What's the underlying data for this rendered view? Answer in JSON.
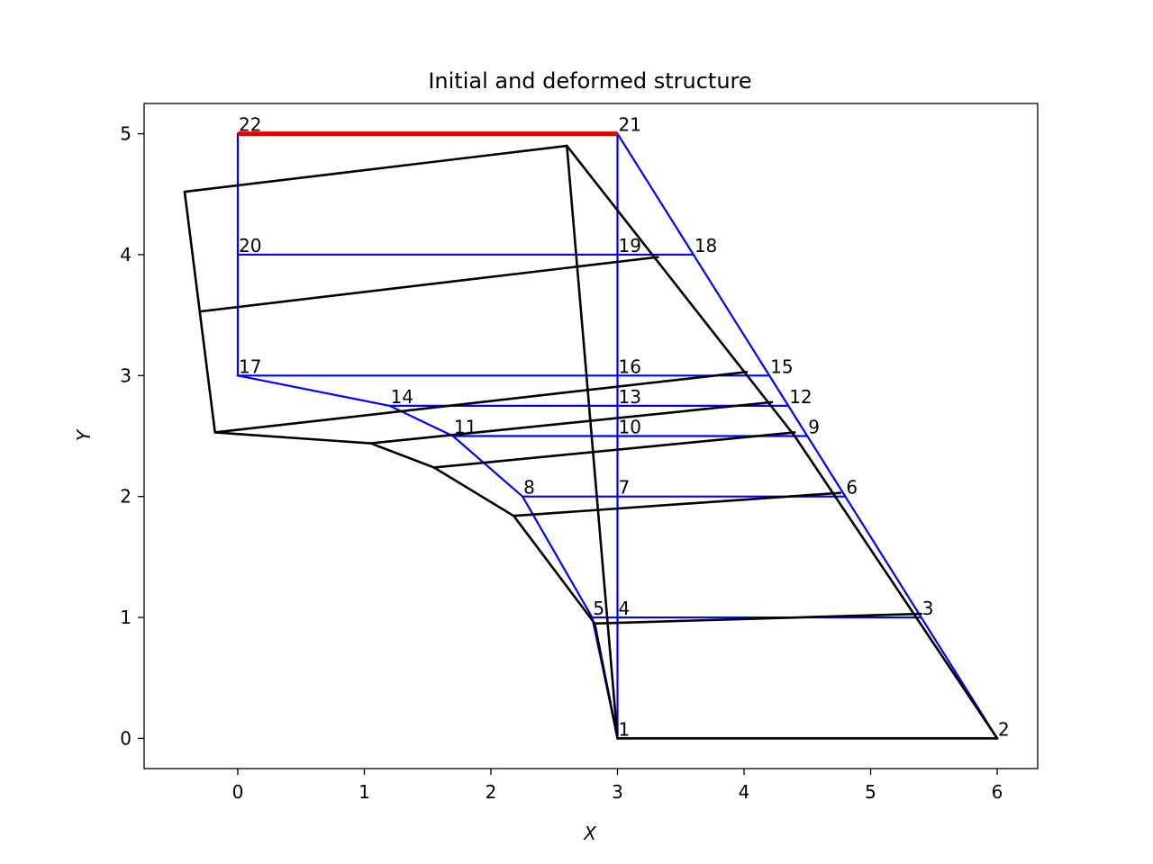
{
  "chart_data": {
    "type": "line",
    "title": "Initial and deformed structure",
    "xlabel": "X",
    "ylabel": "Y",
    "xlim": [
      -0.74,
      6.32
    ],
    "ylim": [
      -0.25,
      5.25
    ],
    "xticks": [
      0,
      1,
      2,
      3,
      4,
      5,
      6
    ],
    "yticks": [
      0,
      1,
      2,
      3,
      4,
      5
    ],
    "grid": false,
    "colors": {
      "initial": "#0000ff",
      "deformed": "#000000",
      "highlight": "#e00000"
    },
    "nodes": [
      {
        "id": "1",
        "label": "1",
        "x": 3.0,
        "y": 0.0
      },
      {
        "id": "2",
        "label": "2",
        "x": 6.0,
        "y": 0.0
      },
      {
        "id": "3",
        "label": "3",
        "x": 5.4,
        "y": 1.0
      },
      {
        "id": "4",
        "label": "4",
        "x": 3.0,
        "y": 1.0
      },
      {
        "id": "5",
        "label": "5",
        "x": 2.8,
        "y": 1.0
      },
      {
        "id": "6",
        "label": "6",
        "x": 4.8,
        "y": 2.0
      },
      {
        "id": "7",
        "label": "7",
        "x": 3.0,
        "y": 2.0
      },
      {
        "id": "8",
        "label": "8",
        "x": 2.25,
        "y": 2.0
      },
      {
        "id": "9",
        "label": "9",
        "x": 4.5,
        "y": 2.5
      },
      {
        "id": "10",
        "label": "10",
        "x": 3.0,
        "y": 2.5
      },
      {
        "id": "11",
        "label": "11",
        "x": 1.7,
        "y": 2.5
      },
      {
        "id": "12",
        "label": "12",
        "x": 4.35,
        "y": 2.75
      },
      {
        "id": "13",
        "label": "13",
        "x": 3.0,
        "y": 2.75
      },
      {
        "id": "14",
        "label": "14",
        "x": 1.2,
        "y": 2.75
      },
      {
        "id": "15",
        "label": "15",
        "x": 4.2,
        "y": 3.0
      },
      {
        "id": "16",
        "label": "16",
        "x": 3.0,
        "y": 3.0
      },
      {
        "id": "17",
        "label": "17",
        "x": 0.0,
        "y": 3.0
      },
      {
        "id": "18",
        "label": "18",
        "x": 3.6,
        "y": 4.0
      },
      {
        "id": "19",
        "label": "19",
        "x": 3.0,
        "y": 4.0
      },
      {
        "id": "20",
        "label": "20",
        "x": 0.0,
        "y": 4.0
      },
      {
        "id": "21",
        "label": "21",
        "x": 3.0,
        "y": 5.0
      },
      {
        "id": "22",
        "label": "22",
        "x": 0.0,
        "y": 5.0
      }
    ],
    "series": [
      {
        "style": "initial",
        "segments": [
          [
            [
              3.0,
              0.0
            ],
            [
              6.0,
              0.0
            ]
          ],
          [
            [
              3.0,
              0.0
            ],
            [
              3.0,
              5.0
            ]
          ],
          [
            [
              6.0,
              0.0
            ],
            [
              3.6,
              4.0
            ]
          ],
          [
            [
              3.6,
              4.0
            ],
            [
              3.0,
              5.0
            ]
          ],
          [
            [
              3.0,
              0.0
            ],
            [
              2.8,
              1.0
            ]
          ],
          [
            [
              2.8,
              1.0
            ],
            [
              2.25,
              2.0
            ]
          ],
          [
            [
              2.25,
              2.0
            ],
            [
              1.7,
              2.5
            ]
          ],
          [
            [
              1.7,
              2.5
            ],
            [
              1.2,
              2.75
            ]
          ],
          [
            [
              1.2,
              2.75
            ],
            [
              0.0,
              3.0
            ]
          ],
          [
            [
              0.0,
              3.0
            ],
            [
              0.0,
              5.0
            ]
          ],
          [
            [
              2.8,
              1.0
            ],
            [
              5.4,
              1.0
            ]
          ],
          [
            [
              2.25,
              2.0
            ],
            [
              4.8,
              2.0
            ]
          ],
          [
            [
              1.7,
              2.5
            ],
            [
              4.5,
              2.5
            ]
          ],
          [
            [
              1.2,
              2.75
            ],
            [
              4.35,
              2.75
            ]
          ],
          [
            [
              0.0,
              3.0
            ],
            [
              4.2,
              3.0
            ]
          ],
          [
            [
              0.0,
              4.0
            ],
            [
              3.6,
              4.0
            ]
          ]
        ]
      },
      {
        "style": "highlight",
        "segments": [
          [
            [
              0.0,
              5.0
            ],
            [
              3.0,
              5.0
            ]
          ]
        ]
      },
      {
        "style": "deformed",
        "segments": [
          [
            [
              3.0,
              0.0
            ],
            [
              6.0,
              0.0
            ]
          ],
          [
            [
              6.0,
              0.0
            ],
            [
              4.4,
              2.5
            ]
          ],
          [
            [
              4.4,
              2.5
            ],
            [
              2.6,
              4.9
            ]
          ],
          [
            [
              2.6,
              4.9
            ],
            [
              -0.42,
              4.52
            ]
          ],
          [
            [
              -0.42,
              4.52
            ],
            [
              -0.18,
              2.53
            ]
          ],
          [
            [
              -0.18,
              2.53
            ],
            [
              1.05,
              2.44
            ]
          ],
          [
            [
              1.05,
              2.44
            ],
            [
              1.55,
              2.24
            ]
          ],
          [
            [
              1.55,
              2.24
            ],
            [
              2.18,
              1.84
            ]
          ],
          [
            [
              2.18,
              1.84
            ],
            [
              2.82,
              0.95
            ]
          ],
          [
            [
              2.82,
              0.95
            ],
            [
              3.0,
              0.0
            ]
          ],
          [
            [
              3.0,
              0.0
            ],
            [
              2.6,
              4.9
            ]
          ],
          [
            [
              2.82,
              0.95
            ],
            [
              5.4,
              1.03
            ]
          ],
          [
            [
              2.18,
              1.84
            ],
            [
              4.76,
              2.03
            ]
          ],
          [
            [
              1.55,
              2.24
            ],
            [
              4.4,
              2.53
            ]
          ],
          [
            [
              1.05,
              2.44
            ],
            [
              4.22,
              2.78
            ]
          ],
          [
            [
              -0.18,
              2.53
            ],
            [
              4.02,
              3.03
            ]
          ],
          [
            [
              -0.3,
              3.53
            ],
            [
              3.32,
              3.98
            ]
          ]
        ]
      }
    ]
  }
}
